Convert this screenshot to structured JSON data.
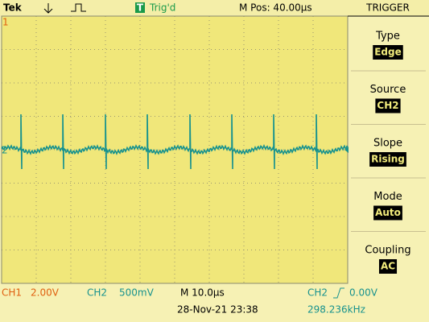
{
  "header": {
    "logo": "Tek",
    "trigger_icon": "T",
    "trigger_state": "Trig'd",
    "horizontal_position": "M Pos: 40.00µs"
  },
  "markers": {
    "ch1": "1",
    "ch2": "2"
  },
  "menu": {
    "title": "TRIGGER",
    "items": [
      {
        "label": "Type",
        "value": "Edge"
      },
      {
        "label": "Source",
        "value": "CH2"
      },
      {
        "label": "Slope",
        "value": "Rising"
      },
      {
        "label": "Mode",
        "value": "Auto"
      },
      {
        "label": "Coupling",
        "value": "AC"
      }
    ]
  },
  "footer": {
    "ch1": "CH1",
    "ch1_scale": "2.00V",
    "ch2": "CH2",
    "ch2_scale": "500mV",
    "timebase": "M 10.0µs",
    "trigger_source": "CH2",
    "trigger_level": "0.00V",
    "date": "28-Nov-21 23:38",
    "frequency": "298.236kHz"
  }
}
